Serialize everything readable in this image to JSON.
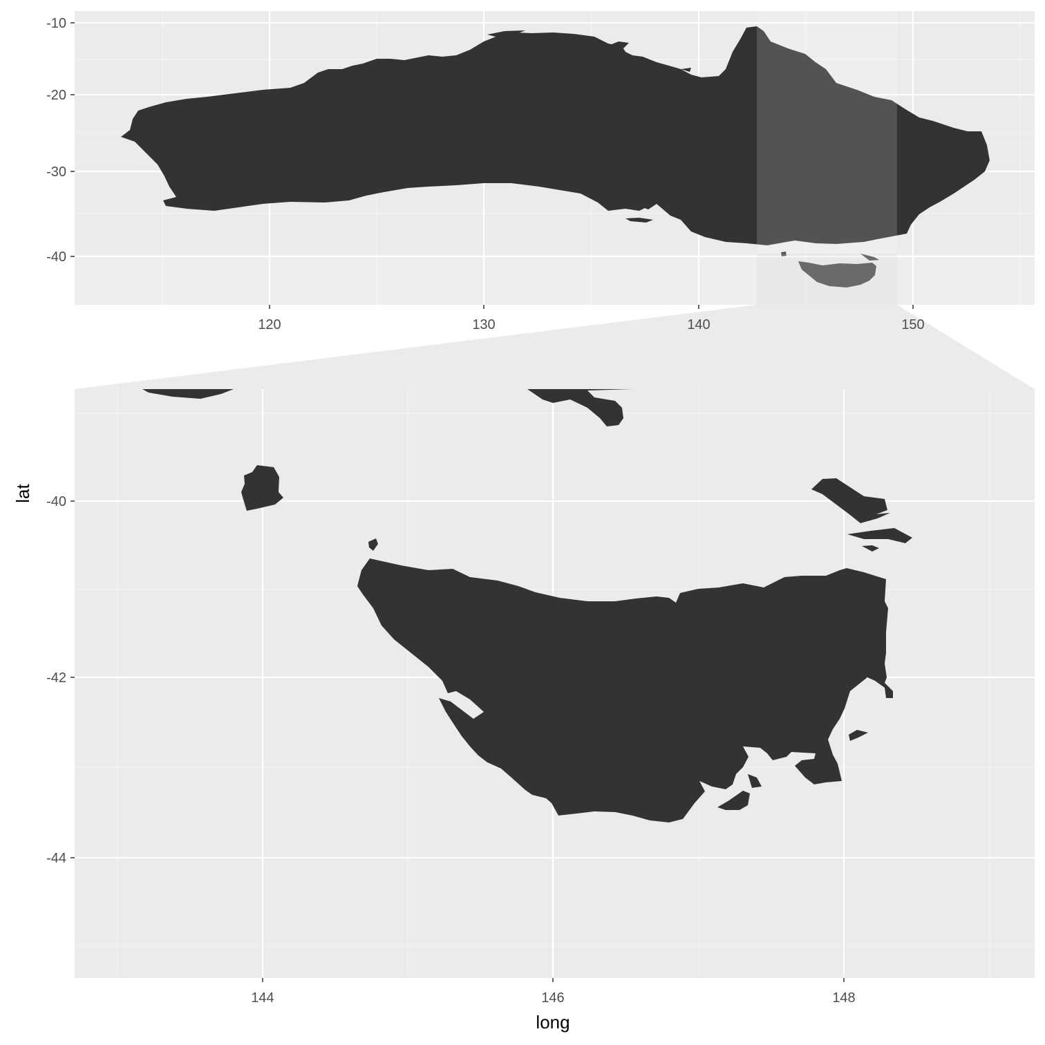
{
  "chart_data": {
    "type": "map-zoom",
    "overview": {
      "x_ticks": [
        "120",
        "130",
        "140",
        "150"
      ],
      "y_ticks": [
        "-10",
        "-20",
        "-30",
        "-40"
      ],
      "xlim": [
        111,
        156
      ],
      "ylim": [
        -46,
        -8
      ],
      "grid": true,
      "zoom_window": {
        "long": [
          142.6,
          149.2
        ],
        "lat": [
          -45.6,
          -39.5
        ]
      }
    },
    "zoom": {
      "x_ticks": [
        "144",
        "146",
        "148"
      ],
      "y_ticks": [
        "-40",
        "-42",
        "-44"
      ],
      "xlim": [
        142.7,
        149.3
      ],
      "ylim": [
        -45.4,
        -38.7
      ],
      "grid": true,
      "xlabel": "long",
      "ylabel": "lat"
    }
  }
}
